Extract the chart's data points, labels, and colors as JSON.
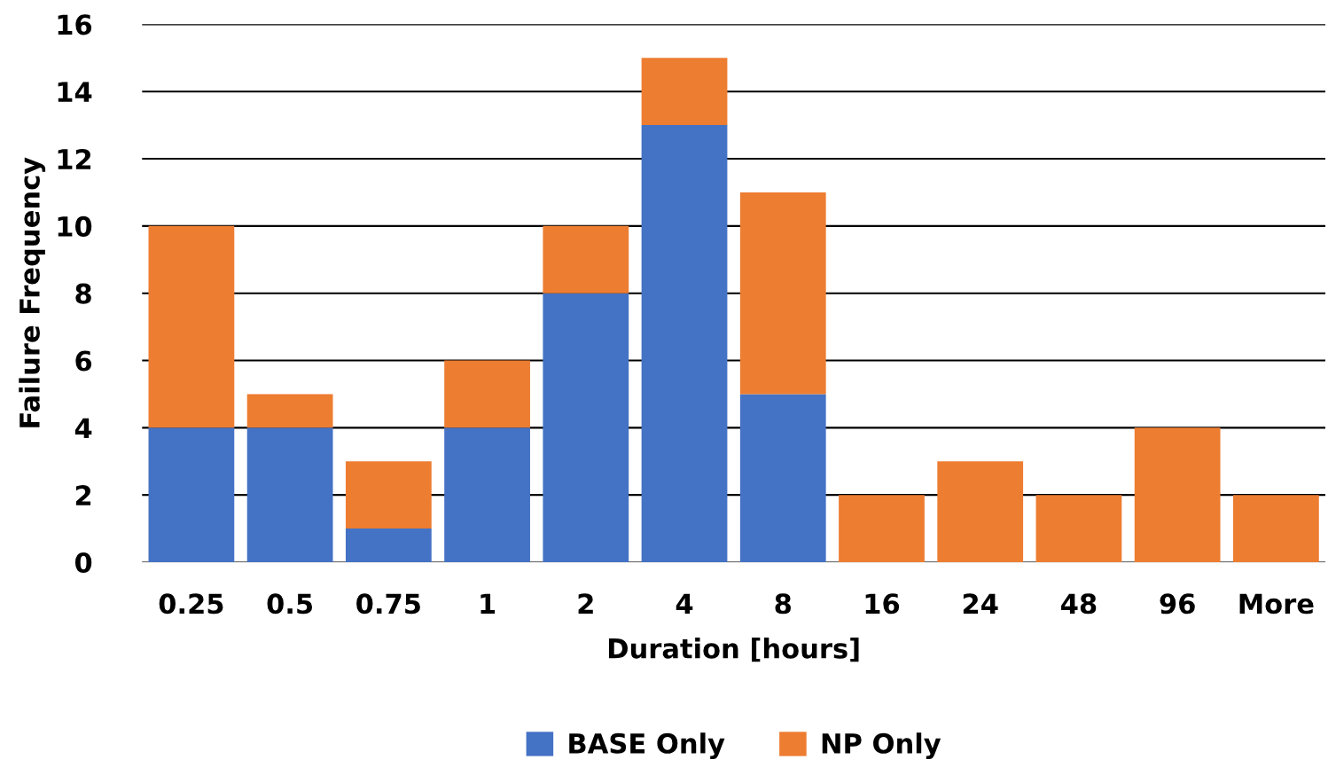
{
  "chart_data": {
    "type": "bar",
    "stacked": true,
    "xlabel": "Duration [hours]",
    "ylabel": "Failure Frequency",
    "categories": [
      "0.25",
      "0.5",
      "0.75",
      "1",
      "2",
      "4",
      "8",
      "16",
      "24",
      "48",
      "96",
      "More"
    ],
    "series": [
      {
        "name": "BASE Only",
        "color": "#4472c4",
        "values": [
          4,
          4,
          1,
          4,
          8,
          13,
          5,
          0,
          0,
          0,
          0,
          0
        ]
      },
      {
        "name": "NP Only",
        "color": "#ed7d31",
        "values": [
          6,
          1,
          2,
          2,
          2,
          2,
          6,
          2,
          3,
          2,
          4,
          2
        ]
      }
    ],
    "ylim": [
      0,
      16
    ],
    "yticks": [
      0,
      2,
      4,
      6,
      8,
      10,
      12,
      14,
      16
    ],
    "grid": "y",
    "legend": "bottom"
  }
}
